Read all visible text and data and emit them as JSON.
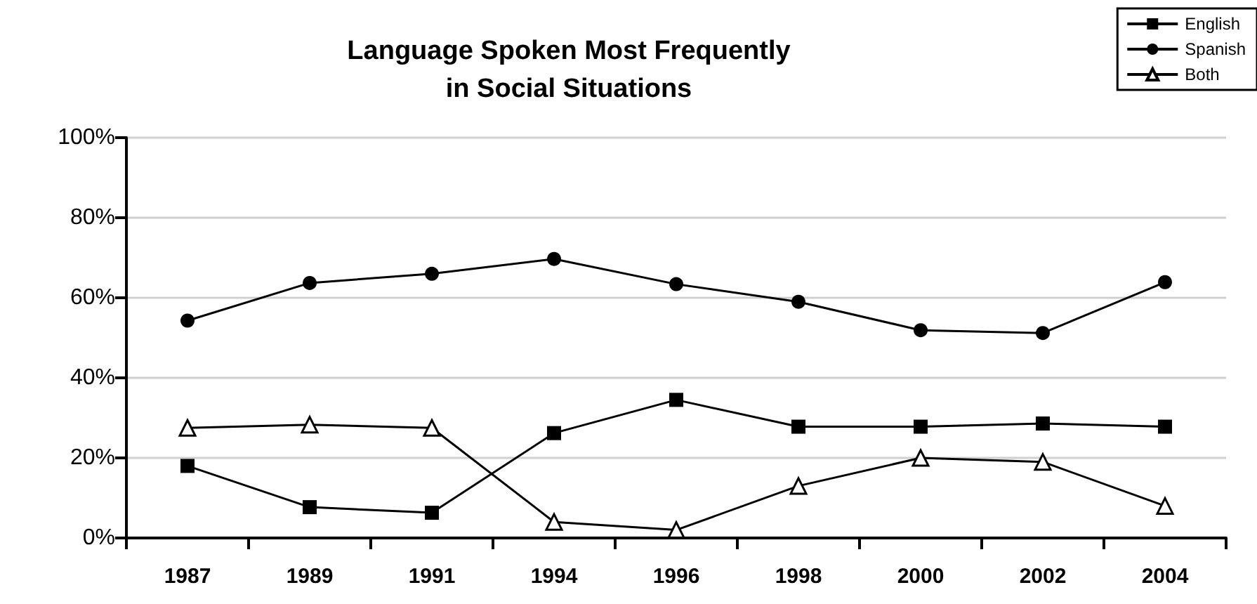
{
  "chart_data": {
    "type": "line",
    "title": "Language Spoken Most Frequently\nin Social Situations",
    "categories": [
      "1987",
      "1989",
      "1991",
      "1994",
      "1996",
      "1998",
      "2000",
      "2002",
      "2004"
    ],
    "series": [
      {
        "name": "English",
        "color": "#000000",
        "marker": "square",
        "values": [
          18,
          7.7,
          6.3,
          26.2,
          34.5,
          27.8,
          27.8,
          28.6,
          27.8
        ]
      },
      {
        "name": "Spanish",
        "color": "#000000",
        "marker": "circle",
        "values": [
          54.3,
          63.7,
          66,
          69.7,
          63.4,
          59,
          51.9,
          51.2,
          63.9
        ]
      },
      {
        "name": "Both",
        "color": "#000000",
        "marker": "triangle",
        "values": [
          27.5,
          28.3,
          27.5,
          4,
          2,
          13,
          20,
          19,
          8
        ]
      }
    ],
    "ylim": [
      0,
      100
    ],
    "yticks": [
      {
        "value": 0,
        "label": "0%"
      },
      {
        "value": 20,
        "label": "20%"
      },
      {
        "value": 40,
        "label": "40%"
      },
      {
        "value": 60,
        "label": "60%"
      },
      {
        "value": 80,
        "label": "80%"
      },
      {
        "value": 100,
        "label": "100%"
      }
    ],
    "grid": "y",
    "legend": "top right",
    "line_style": "solid"
  }
}
